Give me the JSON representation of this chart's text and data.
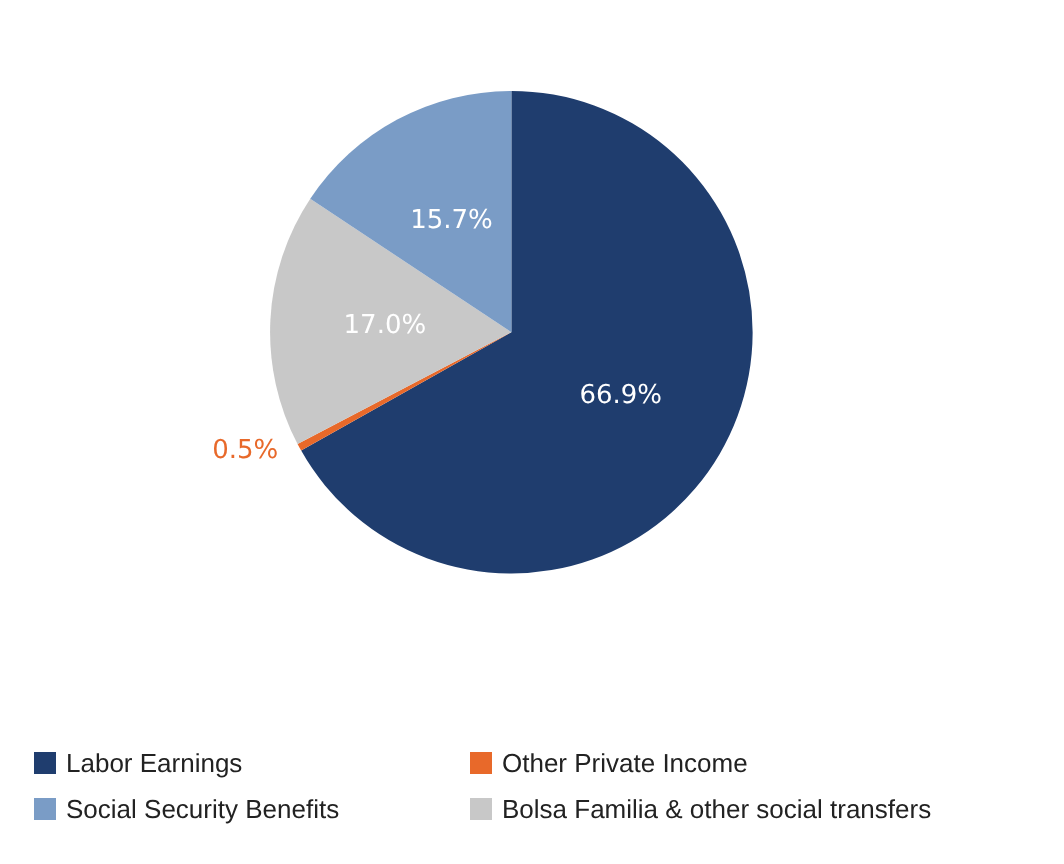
{
  "chart_data": {
    "type": "pie",
    "categories": [
      "Labor Earnings",
      "Other Private Income",
      "Bolsa Familia & other social transfers",
      "Social Security Benefits"
    ],
    "values": [
      66.9,
      0.5,
      17.0,
      15.7
    ],
    "colors": [
      "#1f3d6e",
      "#e8692a",
      "#c8c8c8",
      "#7a9cc6"
    ],
    "value_labels": [
      "66.9%",
      "0.5%",
      "17.0%",
      "15.7%"
    ],
    "legend": "bottom"
  }
}
